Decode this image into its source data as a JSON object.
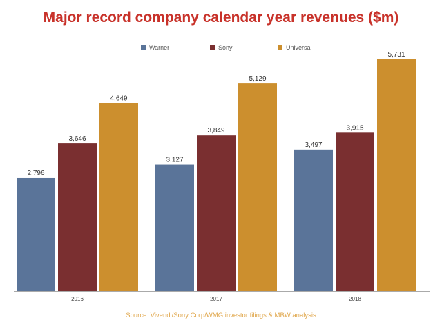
{
  "chart_data": {
    "type": "bar",
    "title": "Major record company calendar year revenues ($m)",
    "categories": [
      "2016",
      "2017",
      "2018"
    ],
    "series": [
      {
        "name": "Warner",
        "color": "#5a7499",
        "values": [
          2796,
          3127,
          3497
        ],
        "labels": [
          "2,796",
          "3,127",
          "3,497"
        ]
      },
      {
        "name": "Sony",
        "color": "#7a2f30",
        "values": [
          3646,
          3849,
          3915
        ],
        "labels": [
          "3,646",
          "3,849",
          "3,915"
        ]
      },
      {
        "name": "Universal",
        "color": "#cc8f2e",
        "values": [
          4649,
          5129,
          5731
        ],
        "labels": [
          "4,649",
          "5,129",
          "5,731"
        ]
      }
    ],
    "xlabel": "",
    "ylabel": "",
    "ylim": [
      0,
      6000
    ],
    "grid": false,
    "legend": "top-center",
    "source": "Source: Vivendi/Sony Corp/WMG investor filings & MBW analysis"
  }
}
